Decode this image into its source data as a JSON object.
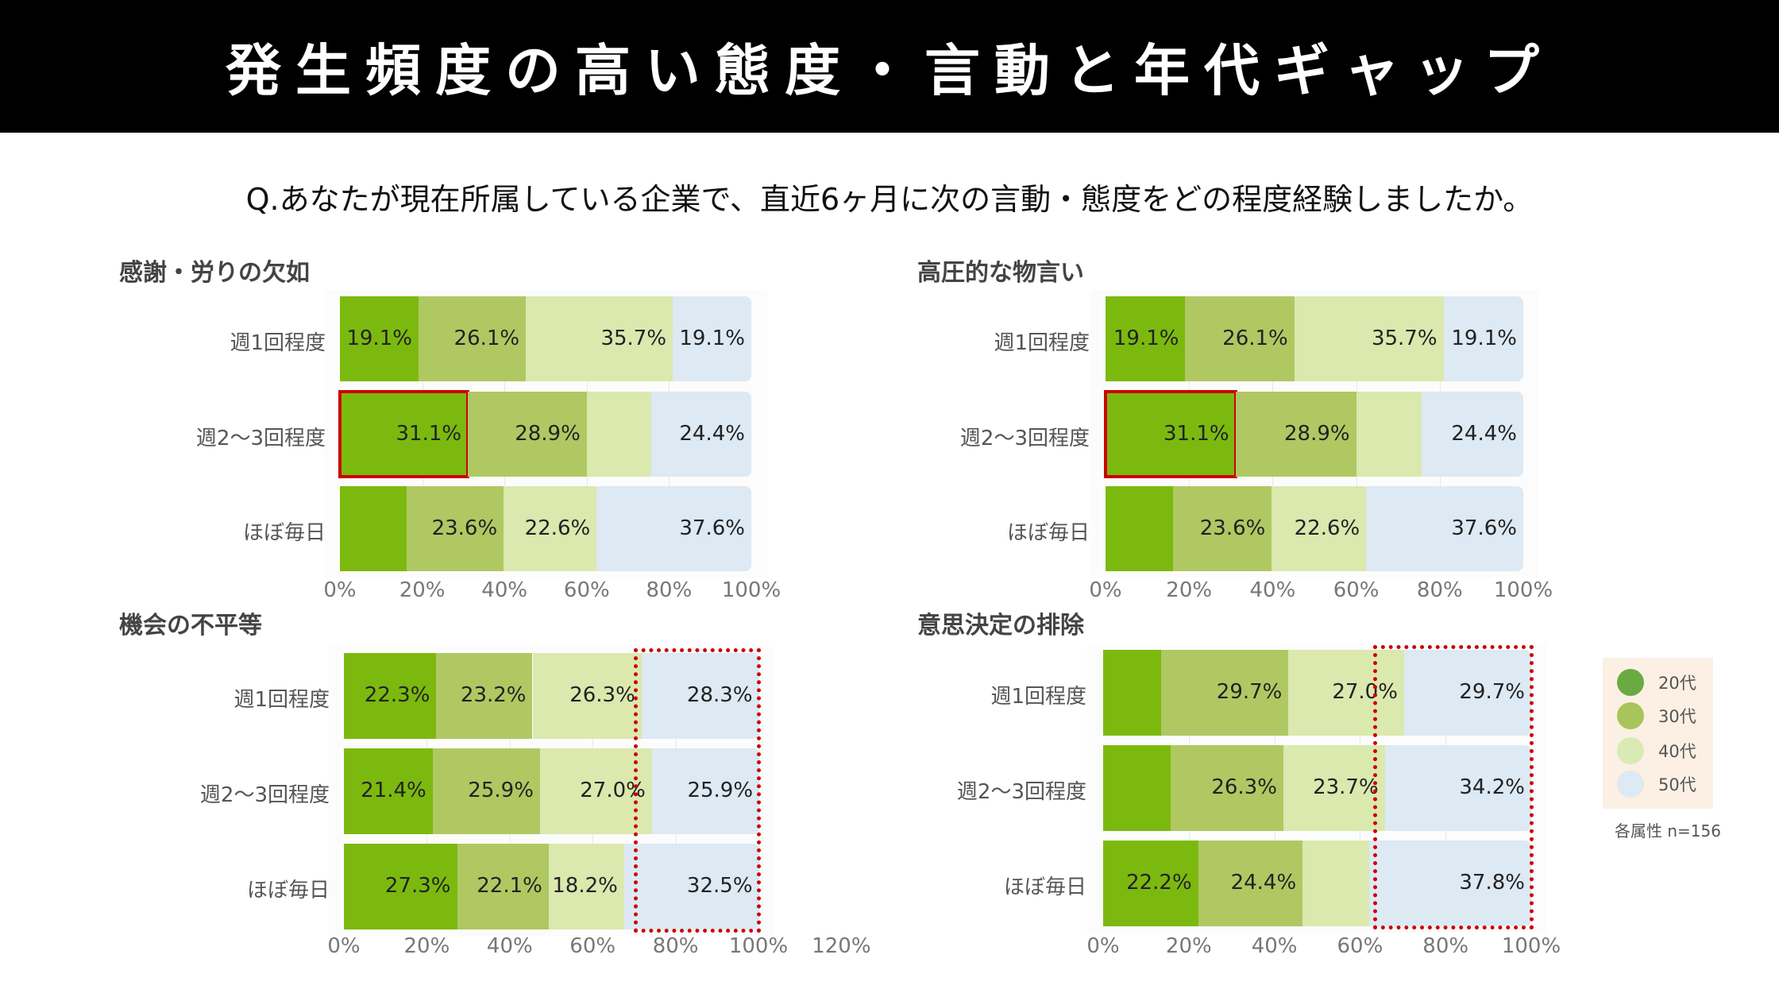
{
  "header": {
    "title": "発生頻度の高い態度・言動と年代ギャップ"
  },
  "question": "Q.あなたが現在所属している企業で、直近6ヶ月に次の言動・態度をどの程度経験しましたか。",
  "legend": {
    "items": [
      {
        "label": "20代",
        "color": "#6aaa42"
      },
      {
        "label": "30代",
        "color": "#a9c45a"
      },
      {
        "label": "40代",
        "color": "#d9eab5"
      },
      {
        "label": "50代",
        "color": "#dde9f3"
      }
    ],
    "note": "各属性 n=156"
  },
  "segment_colors": [
    "#7cb90f",
    "#b0c862",
    "#dbe8ae",
    "#dde9f3"
  ],
  "highlight_color": "#cc0000",
  "chart_data": [
    {
      "type": "bar",
      "stacked": true,
      "orientation": "horizontal",
      "title": "感謝・労りの欠如",
      "categories": [
        "週1回程度",
        "週2〜3回程度",
        "ほぼ毎日"
      ],
      "series": [
        {
          "name": "20代",
          "values": [
            19.1,
            31.1,
            16.2
          ],
          "labels": [
            "19.1%",
            "31.1%",
            null
          ]
        },
        {
          "name": "30代",
          "values": [
            26.1,
            28.9,
            23.6
          ],
          "labels": [
            "26.1%",
            "28.9%",
            "23.6%"
          ]
        },
        {
          "name": "40代",
          "values": [
            35.7,
            15.6,
            22.6
          ],
          "labels": [
            "35.7%",
            null,
            "22.6%"
          ]
        },
        {
          "name": "50代",
          "values": [
            19.1,
            24.4,
            37.6
          ],
          "labels": [
            "19.1%",
            "24.4%",
            "37.6%"
          ]
        }
      ],
      "xlim": [
        0,
        100
      ],
      "xticks": [
        "0%",
        "20%",
        "40%",
        "60%",
        "80%",
        "100%"
      ],
      "highlight": {
        "type": "solid",
        "row": 1,
        "series": 0
      }
    },
    {
      "type": "bar",
      "stacked": true,
      "orientation": "horizontal",
      "title": "高圧的な物言い",
      "categories": [
        "週1回程度",
        "週2〜3回程度",
        "ほぼ毎日"
      ],
      "series": [
        {
          "name": "20代",
          "values": [
            19.1,
            31.1,
            16.2
          ],
          "labels": [
            "19.1%",
            "31.1%",
            null
          ]
        },
        {
          "name": "30代",
          "values": [
            26.1,
            28.9,
            23.6
          ],
          "labels": [
            "26.1%",
            "28.9%",
            "23.6%"
          ]
        },
        {
          "name": "40代",
          "values": [
            35.7,
            15.6,
            22.6
          ],
          "labels": [
            "35.7%",
            null,
            "22.6%"
          ]
        },
        {
          "name": "50代",
          "values": [
            19.1,
            24.4,
            37.6
          ],
          "labels": [
            "19.1%",
            "24.4%",
            "37.6%"
          ]
        }
      ],
      "xlim": [
        0,
        100
      ],
      "xticks": [
        "0%",
        "20%",
        "40%",
        "60%",
        "80%",
        "100%"
      ],
      "highlight": {
        "type": "solid",
        "row": 1,
        "series": 0
      }
    },
    {
      "type": "bar",
      "stacked": true,
      "orientation": "horizontal",
      "title": "機会の不平等",
      "categories": [
        "週1回程度",
        "週2〜3回程度",
        "ほぼ毎日"
      ],
      "series": [
        {
          "name": "20代",
          "values": [
            22.3,
            21.4,
            27.3
          ],
          "labels": [
            "22.3%",
            "21.4%",
            "27.3%"
          ]
        },
        {
          "name": "30代",
          "values": [
            23.2,
            25.9,
            22.1
          ],
          "labels": [
            "23.2%",
            "25.9%",
            "22.1%"
          ]
        },
        {
          "name": "40代",
          "values": [
            26.3,
            27.0,
            18.2
          ],
          "labels": [
            "26.3%",
            "27.0%",
            "18.2%"
          ]
        },
        {
          "name": "50代",
          "values": [
            28.3,
            25.9,
            32.5
          ],
          "labels": [
            "28.3%",
            "25.9%",
            "32.5%"
          ]
        }
      ],
      "xlim": [
        0,
        120
      ],
      "xticks": [
        "0%",
        "20%",
        "40%",
        "60%",
        "80%",
        "100%",
        "120%"
      ],
      "highlight": {
        "type": "dotted",
        "from_pct": 70,
        "to_pct": 100
      }
    },
    {
      "type": "bar",
      "stacked": true,
      "orientation": "horizontal",
      "title": "意思決定の排除",
      "categories": [
        "週1回程度",
        "週2〜3回程度",
        "ほぼ毎日"
      ],
      "series": [
        {
          "name": "20代",
          "values": [
            13.6,
            15.8,
            22.2
          ],
          "labels": [
            null,
            null,
            "22.2%"
          ]
        },
        {
          "name": "30代",
          "values": [
            29.7,
            26.3,
            24.4
          ],
          "labels": [
            "29.7%",
            "26.3%",
            "24.4%"
          ]
        },
        {
          "name": "40代",
          "values": [
            27.0,
            23.7,
            15.6
          ],
          "labels": [
            "27.0%",
            "23.7%",
            null
          ]
        },
        {
          "name": "50代",
          "values": [
            29.7,
            34.2,
            37.8
          ],
          "labels": [
            "29.7%",
            "34.2%",
            "37.8%"
          ]
        }
      ],
      "xlim": [
        0,
        100
      ],
      "xticks": [
        "0%",
        "20%",
        "40%",
        "60%",
        "80%",
        "100%"
      ],
      "highlight": {
        "type": "dotted",
        "from_pct": 63,
        "to_pct": 100
      }
    }
  ]
}
